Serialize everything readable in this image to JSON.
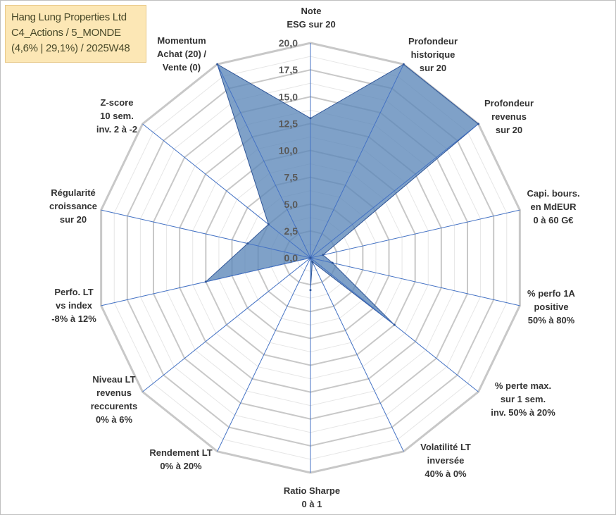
{
  "chart_data": {
    "type": "radar",
    "title": [
      "Hang Lung Properties Ltd",
      "C4_Actions / 5_MONDE",
      "(4,6% | 29,1%) / 2025W48"
    ],
    "rmin": 0,
    "rmax": 20,
    "tick_values": [
      0,
      2.5,
      5,
      7.5,
      10,
      12.5,
      15,
      17.5,
      20
    ],
    "tick_labels": [
      "0,0",
      "2,5",
      "5,0",
      "7,5",
      "10,0",
      "12,5",
      "15,0",
      "17,5",
      "20,0"
    ],
    "gridlines": "polygon",
    "series": [
      {
        "name": "Hang Lung Properties Ltd",
        "color": "#5b86b8",
        "values": [
          13,
          20,
          20,
          1.2,
          2.1,
          10,
          0.4,
          3,
          0,
          0,
          10,
          6,
          5,
          20
        ]
      }
    ],
    "axes": [
      [
        "Note",
        "ESG sur 20"
      ],
      [
        "Profondeur",
        "historique",
        "sur 20"
      ],
      [
        "Profondeur",
        "revenus",
        "sur 20"
      ],
      [
        "Capi. bours.",
        "en MdEUR",
        "0 à 60 G€"
      ],
      [
        "% perfo 1A",
        "positive",
        "50% à 80%"
      ],
      [
        "% perte max.",
        "sur 1 sem.",
        "inv. 50% à 20%"
      ],
      [
        "Volatilité LT",
        "inversée",
        "40% à 0%"
      ],
      [
        "Ratio Sharpe",
        "0 à 1"
      ],
      [
        "Rendement LT",
        "0% à 20%"
      ],
      [
        "Niveau LT",
        "revenus",
        "reccurents",
        "0% à 6%"
      ],
      [
        "Perfo. LT",
        "vs index",
        "-8% à 12%"
      ],
      [
        "Régularité",
        "croissance",
        "sur 20"
      ],
      [
        "Z-score",
        "10 sem.",
        "inv. 2 à -2"
      ],
      [
        "Momentum",
        "Achat (20) /",
        "Vente (0)"
      ]
    ]
  },
  "colors": {
    "grid": "#c8c8c8",
    "spoke": "#4472c4",
    "fill": "#5b86b8",
    "title_bg": "#fce7b5"
  }
}
